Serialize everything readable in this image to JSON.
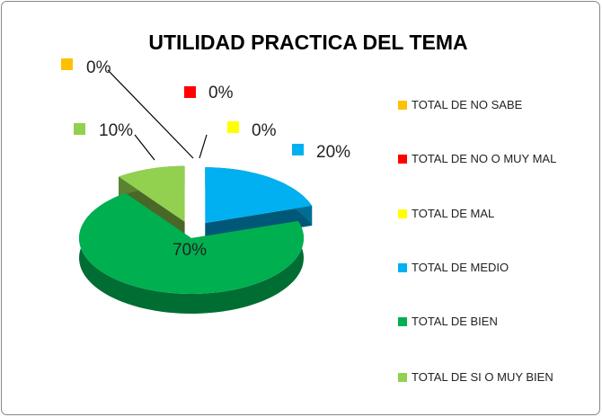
{
  "chart_data": {
    "type": "pie",
    "title": "UTILIDAD PRACTICA DEL TEMA",
    "categories": [
      "TOTAL DE NO SABE",
      "TOTAL DE NO O MUY MAL",
      "TOTAL DE MAL",
      "TOTAL DE MEDIO",
      "TOTAL DE BIEN",
      "TOTAL DE SI O MUY BIEN"
    ],
    "values": [
      0,
      0,
      0,
      20,
      70,
      10
    ],
    "value_labels": [
      "0%",
      "0%",
      "0%",
      "20%",
      "70%",
      "10%"
    ],
    "colors": [
      "#ffc000",
      "#ff0000",
      "#ffff00",
      "#00b0f0",
      "#00b050",
      "#92d050"
    ],
    "legend": "right"
  }
}
